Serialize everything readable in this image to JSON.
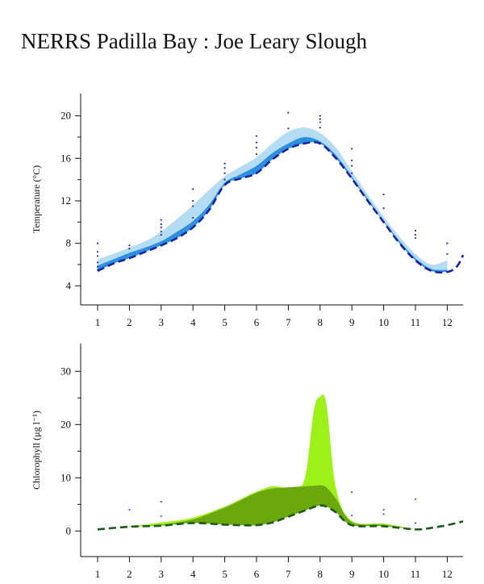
{
  "page": {
    "title": "NERRS Padilla Bay : Joe Leary Slough"
  },
  "chart_data": [
    {
      "type": "area",
      "id": "temperature",
      "title": "",
      "xlabel": "",
      "ylabel": "Temperature (°C)",
      "xlim": [
        0.55,
        12.55
      ],
      "ylim": [
        2.2,
        22.1
      ],
      "x_ticks": [
        "1",
        "2",
        "3",
        "4",
        "5",
        "6",
        "7",
        "8",
        "9",
        "10",
        "11",
        "12"
      ],
      "y_ticks": [
        "4",
        "8",
        "12",
        "16",
        "20"
      ],
      "y_tick_values": [
        4,
        8,
        12,
        16,
        20
      ],
      "y_minor_ticks": [
        6,
        10,
        14,
        18
      ],
      "colors": {
        "band_upper": "#b4dcf2",
        "band_lower": "#2e8fdf",
        "dashed_line": "#16259e",
        "points": "#2030b8"
      },
      "series": [
        {
          "role": "band-upper",
          "x": [
            1,
            1.5,
            2,
            2.5,
            3,
            3.5,
            4,
            4.5,
            5,
            5.5,
            6,
            6.5,
            7,
            7.5,
            8,
            8.5,
            9,
            9.5,
            10,
            10.5,
            11,
            11.5,
            12
          ],
          "high": [
            6.5,
            7.0,
            7.6,
            8.2,
            9.1,
            10.3,
            11.6,
            13.0,
            14.3,
            15.2,
            16.1,
            17.4,
            18.5,
            18.9,
            18.4,
            17.0,
            14.8,
            12.6,
            10.5,
            8.6,
            7.0,
            6.0,
            6.4
          ],
          "low": [
            5.9,
            6.5,
            7.1,
            7.6,
            8.2,
            9.1,
            10.1,
            11.6,
            13.7,
            14.5,
            15.3,
            16.5,
            17.4,
            18.0,
            17.6,
            16.3,
            14.3,
            12.2,
            10.1,
            8.2,
            6.6,
            5.6,
            5.5
          ]
        },
        {
          "role": "band-lower",
          "x": [
            1,
            1.5,
            2,
            2.5,
            3,
            3.5,
            4,
            4.5,
            5,
            5.5,
            6,
            6.5,
            7,
            7.5,
            8,
            8.5,
            9,
            9.5,
            10,
            10.5,
            11,
            11.5,
            12
          ],
          "high": [
            5.9,
            6.5,
            7.1,
            7.6,
            8.2,
            9.1,
            10.1,
            11.6,
            13.7,
            14.5,
            15.3,
            16.5,
            17.4,
            18.0,
            17.6,
            16.3,
            14.3,
            12.2,
            10.1,
            8.2,
            6.6,
            5.6,
            5.5
          ],
          "low": [
            5.4,
            6.1,
            6.6,
            7.2,
            7.8,
            8.5,
            9.5,
            11.1,
            13.5,
            14.1,
            14.6,
            15.9,
            16.9,
            17.4,
            17.4,
            16.0,
            14.1,
            12.0,
            10.0,
            8.0,
            6.4,
            5.4,
            5.3
          ]
        },
        {
          "role": "dashed-line",
          "x": [
            1,
            1.5,
            2,
            2.5,
            3,
            3.5,
            4,
            4.5,
            5,
            5.5,
            6,
            6.5,
            7,
            7.5,
            8,
            8.5,
            9,
            9.5,
            10,
            10.5,
            11,
            11.5,
            12,
            12.3,
            12.5
          ],
          "y": [
            5.4,
            6.1,
            6.6,
            7.2,
            7.8,
            8.5,
            9.5,
            11.1,
            13.5,
            14.1,
            14.6,
            15.9,
            16.9,
            17.4,
            17.4,
            16.0,
            14.1,
            12.0,
            10.0,
            8.0,
            6.4,
            5.4,
            5.3,
            5.8,
            6.9
          ]
        },
        {
          "role": "points",
          "x": [
            1,
            1,
            1,
            1,
            1,
            1,
            2,
            2,
            3,
            3,
            3,
            3,
            3,
            4,
            4,
            4,
            4,
            5,
            5,
            5,
            5,
            6,
            6,
            6,
            6,
            7,
            7,
            8,
            8,
            8,
            8,
            9,
            9,
            9,
            9,
            10,
            10,
            11,
            11,
            11,
            12,
            12
          ],
          "y": [
            8.0,
            7.2,
            6.8,
            6.2,
            5.8,
            5.5,
            7.8,
            7.5,
            10.2,
            9.8,
            9.5,
            9.1,
            8.8,
            13.1,
            12.0,
            11.5,
            10.4,
            15.5,
            15.1,
            14.6,
            14.0,
            18.1,
            17.5,
            17.0,
            16.4,
            20.3,
            18.8,
            20.0,
            19.7,
            19.4,
            18.9,
            16.9,
            15.8,
            15.3,
            14.6,
            12.6,
            11.3,
            9.2,
            8.8,
            8.5,
            8.0,
            7.0
          ]
        }
      ]
    },
    {
      "type": "area",
      "id": "chlorophyll",
      "title": "",
      "xlabel": "",
      "ylabel": "Chlorophyll (μg l⁻¹)",
      "xlim": [
        0.55,
        12.55
      ],
      "ylim": [
        -4.8,
        35.2
      ],
      "x_ticks": [
        "1",
        "2",
        "3",
        "4",
        "5",
        "6",
        "7",
        "8",
        "9",
        "10",
        "11",
        "12"
      ],
      "y_ticks": [
        "0",
        "10",
        "20",
        "30"
      ],
      "y_tick_values": [
        0,
        10,
        20,
        30
      ],
      "y_minor_ticks": [
        5,
        15,
        25
      ],
      "colors": {
        "band_upper": "#9df018",
        "band_lower": "#6aa80e",
        "dashed_line": "#1a5a1e",
        "points": "#2b6ab8"
      },
      "series": [
        {
          "role": "band-upper",
          "x": [
            1,
            2,
            3,
            4,
            5,
            5.5,
            6,
            6.5,
            7,
            7.5,
            7.8,
            8,
            8.2,
            8.5,
            9,
            10,
            11
          ],
          "high": [
            0.3,
            0.9,
            1.6,
            2.5,
            4.6,
            6.0,
            7.4,
            8.4,
            8.2,
            9.5,
            22.5,
            25.2,
            23.8,
            8.1,
            1.9,
            1.4,
            0.3
          ],
          "low": [
            0.3,
            0.8,
            1.2,
            2.2,
            4.4,
            5.8,
            7.2,
            8.0,
            8.2,
            8.4,
            8.5,
            8.6,
            8.2,
            6.1,
            1.7,
            1.2,
            0.3
          ]
        },
        {
          "role": "band-lower",
          "x": [
            1,
            2,
            3,
            4,
            5,
            5.5,
            6,
            6.5,
            7,
            7.5,
            7.8,
            8,
            8.2,
            8.5,
            9,
            10,
            11
          ],
          "high": [
            0.3,
            0.8,
            1.2,
            2.2,
            4.4,
            5.8,
            7.2,
            8.0,
            8.2,
            8.4,
            8.5,
            8.6,
            8.2,
            6.1,
            1.7,
            1.2,
            0.3
          ],
          "low": [
            0.3,
            0.8,
            1.0,
            1.5,
            1.2,
            1.1,
            1.1,
            1.6,
            2.7,
            3.8,
            4.5,
            4.8,
            4.6,
            3.5,
            1.1,
            0.9,
            0.3
          ]
        },
        {
          "role": "dashed-line",
          "x": [
            1,
            2,
            3,
            4,
            5,
            5.5,
            6,
            6.5,
            7,
            7.5,
            7.8,
            8,
            8.2,
            8.5,
            9,
            10,
            11,
            11.5,
            12,
            12.5
          ],
          "y": [
            0.3,
            0.8,
            1.0,
            1.5,
            1.2,
            1.1,
            1.1,
            1.6,
            2.7,
            3.8,
            4.5,
            4.8,
            4.6,
            3.5,
            1.1,
            0.9,
            0.3,
            0.6,
            1.1,
            1.8
          ]
        },
        {
          "role": "points",
          "x": [
            2,
            3,
            3,
            9,
            9,
            10,
            10,
            11,
            11
          ],
          "y": [
            4.0,
            5.5,
            2.8,
            7.3,
            2.9,
            4.0,
            3.2,
            6.0,
            1.5
          ]
        }
      ]
    }
  ]
}
